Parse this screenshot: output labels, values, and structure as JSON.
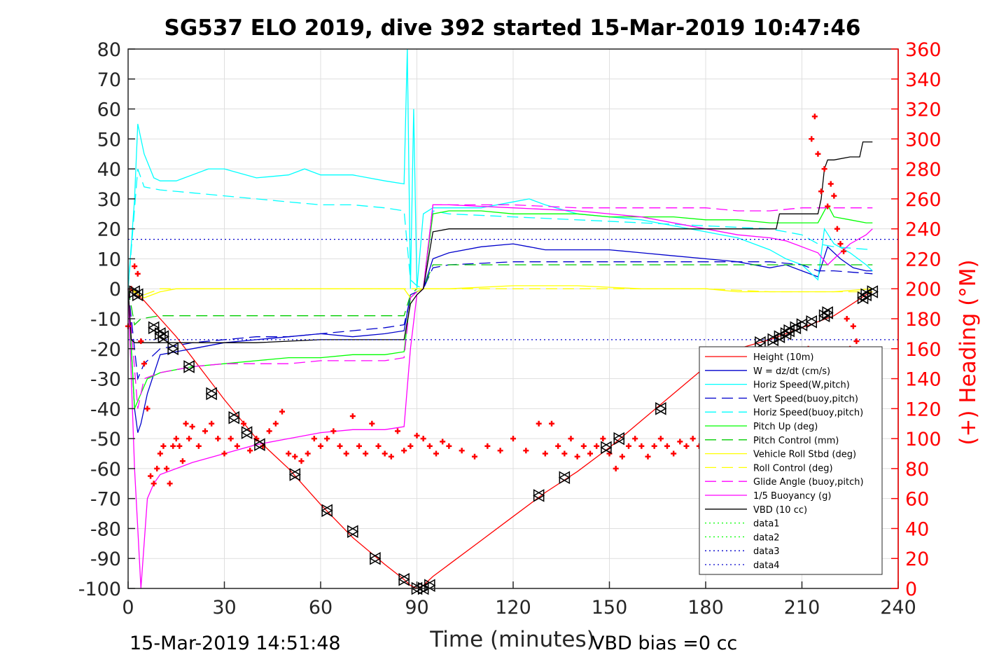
{
  "chart_data": {
    "type": "line",
    "title": "SG537 ELO 2019, dive 392 started 15-Mar-2019 10:47:46",
    "xlabel": "Time (minutes)",
    "ylabel_right": "(+) Heading (°M)",
    "xlim": [
      0,
      240
    ],
    "ylim": [
      -100,
      80
    ],
    "ylim_right": [
      0,
      360
    ],
    "x_ticks": [
      "0",
      "30",
      "60",
      "90",
      "120",
      "150",
      "180",
      "210",
      "240"
    ],
    "y_ticks": [
      "80",
      "70",
      "60",
      "50",
      "40",
      "30",
      "20",
      "10",
      "0",
      "-10",
      "-20",
      "-30",
      "-40",
      "-50",
      "-60",
      "-70",
      "-80",
      "-90",
      "-100"
    ],
    "y_ticks_right": [
      "360",
      "340",
      "320",
      "300",
      "280",
      "260",
      "240",
      "220",
      "200",
      "180",
      "160",
      "140",
      "120",
      "100",
      "80",
      "60",
      "40",
      "20",
      "0"
    ],
    "grid": true,
    "legend_position": "bottom-right",
    "footer_left": "15-Mar-2019 14:51:48",
    "footer_right": "VBD bias =0 cc",
    "series": [
      {
        "name": "Height (10m)",
        "color": "#ff0000",
        "style": "solid",
        "x": [
          0,
          2,
          5,
          10,
          15,
          20,
          30,
          40,
          50,
          60,
          70,
          80,
          86,
          88,
          90,
          92,
          95,
          100,
          110,
          120,
          130,
          140,
          150,
          160,
          170,
          180,
          190,
          200,
          210,
          220,
          230,
          232
        ],
        "y": [
          0,
          -1,
          -4,
          -10,
          -16,
          -23,
          -37,
          -50,
          -60,
          -72,
          -83,
          -92,
          -97,
          -99,
          -100,
          -99,
          -96,
          -92,
          -84,
          -76,
          -68,
          -61,
          -53,
          -44,
          -35,
          -26,
          -20,
          -17,
          -13,
          -9,
          -2,
          -1
        ]
      },
      {
        "name": "W = dz/dt (cm/s)",
        "color": "#0000cc",
        "style": "solid",
        "x": [
          0,
          1,
          2,
          3,
          4,
          6,
          10,
          20,
          30,
          40,
          50,
          60,
          70,
          80,
          86,
          88,
          90,
          92,
          95,
          100,
          110,
          120,
          125,
          130,
          140,
          150,
          160,
          170,
          180,
          190,
          200,
          205,
          210,
          215,
          218,
          222,
          226,
          230,
          232
        ],
        "y": [
          0,
          -20,
          -40,
          -48,
          -45,
          -35,
          -22,
          -20,
          -18,
          -17,
          -16,
          -15,
          -16,
          -15,
          -14,
          -2,
          -1,
          0,
          10,
          12,
          14,
          15,
          14,
          13,
          13,
          13,
          12,
          11,
          10,
          9,
          7,
          8,
          6,
          4,
          14,
          10,
          7,
          6,
          6
        ]
      },
      {
        "name": "Horiz Speed(W,pitch)",
        "color": "#00ffff",
        "style": "solid",
        "x": [
          0,
          2,
          3,
          5,
          8,
          10,
          15,
          20,
          25,
          30,
          40,
          50,
          55,
          60,
          70,
          80,
          86,
          87,
          88,
          89,
          90,
          92,
          95,
          100,
          110,
          120,
          125,
          130,
          140,
          150,
          160,
          170,
          180,
          190,
          200,
          205,
          210,
          213,
          215,
          217,
          220,
          225,
          230,
          232
        ],
        "y": [
          0,
          30,
          55,
          45,
          37,
          36,
          36,
          38,
          40,
          40,
          37,
          38,
          40,
          38,
          38,
          36,
          35,
          80,
          0,
          60,
          0,
          25,
          27,
          27,
          27,
          29,
          30,
          28,
          25,
          24,
          23,
          21,
          19,
          17,
          13,
          10,
          8,
          5,
          3,
          20,
          15,
          12,
          8,
          6
        ]
      },
      {
        "name": "Vert Speed(buoy,pitch)",
        "color": "#0000cc",
        "style": "dashed",
        "x": [
          0,
          3,
          5,
          10,
          20,
          30,
          40,
          50,
          60,
          70,
          80,
          86,
          88,
          90,
          92,
          95,
          100,
          120,
          140,
          160,
          180,
          200,
          210,
          215,
          220,
          232
        ],
        "y": [
          0,
          -30,
          -25,
          -20,
          -18,
          -17,
          -16,
          -16,
          -15,
          -14,
          -13,
          -12,
          -3,
          -1,
          0,
          7,
          8,
          9,
          9,
          9,
          9,
          9,
          8,
          6,
          6,
          5
        ]
      },
      {
        "name": "Horiz Speed(buoy,pitch)",
        "color": "#00ffff",
        "style": "dashed",
        "x": [
          0,
          3,
          5,
          10,
          20,
          30,
          40,
          50,
          60,
          70,
          80,
          86,
          88,
          90,
          92,
          95,
          100,
          120,
          140,
          160,
          180,
          200,
          210,
          215,
          220,
          232
        ],
        "y": [
          0,
          40,
          34,
          33,
          32,
          31,
          30,
          29,
          28,
          28,
          27,
          26,
          3,
          1,
          0,
          26,
          25,
          24,
          23,
          22,
          21,
          20,
          18,
          15,
          14,
          13
        ]
      },
      {
        "name": "Pitch Up (deg)",
        "color": "#00ff00",
        "style": "solid",
        "x": [
          0,
          2,
          4,
          6,
          10,
          20,
          30,
          40,
          50,
          60,
          70,
          80,
          86,
          88,
          90,
          92,
          95,
          100,
          110,
          120,
          130,
          140,
          150,
          160,
          170,
          180,
          190,
          200,
          210,
          215,
          218,
          220,
          225,
          230,
          232
        ],
        "y": [
          0,
          -40,
          -35,
          -30,
          -28,
          -26,
          -25,
          -24,
          -23,
          -23,
          -22,
          -22,
          -21,
          -3,
          -1,
          0,
          25,
          26,
          26,
          25,
          25,
          25,
          24,
          24,
          24,
          23,
          23,
          22,
          22,
          22,
          28,
          24,
          23,
          22,
          22
        ]
      },
      {
        "name": "Pitch Control (mm)",
        "color": "#00cc00",
        "style": "dashed",
        "x": [
          0,
          2,
          4,
          10,
          20,
          40,
          60,
          80,
          86,
          88,
          90,
          92,
          95,
          120,
          150,
          180,
          200,
          210,
          220,
          232
        ],
        "y": [
          0,
          -12,
          -10,
          -9,
          -9,
          -9,
          -9,
          -9,
          -9,
          -2,
          0,
          0,
          8,
          8,
          8,
          8,
          8,
          8,
          8,
          8
        ]
      },
      {
        "name": "Vehicle Roll Stbd (deg)",
        "color": "#ffff00",
        "style": "solid",
        "x": [
          0,
          5,
          10,
          15,
          20,
          30,
          40,
          50,
          60,
          70,
          80,
          86,
          88,
          90,
          92,
          95,
          100,
          120,
          140,
          160,
          180,
          190,
          200,
          210,
          220,
          232
        ],
        "y": [
          0,
          -3,
          -1,
          0,
          0,
          0,
          0,
          0,
          0,
          0,
          0,
          0,
          -3,
          -1,
          0,
          0,
          0,
          1,
          1,
          0,
          0,
          -1,
          -1,
          -1,
          -1,
          0
        ]
      },
      {
        "name": "Roll Control (deg)",
        "color": "#ffff00",
        "style": "dashed",
        "x": [
          0,
          5,
          10,
          20,
          40,
          60,
          80,
          88,
          90,
          95,
          120,
          150,
          180,
          200,
          210,
          220,
          232
        ],
        "y": [
          0,
          -2,
          0,
          0,
          0,
          0,
          0,
          0,
          0,
          0,
          0,
          0,
          0,
          -1,
          -1,
          -1,
          -1
        ]
      },
      {
        "name": "Glide Angle (buoy,pitch)",
        "color": "#ff00ff",
        "style": "dashed",
        "x": [
          0,
          3,
          5,
          10,
          20,
          30,
          40,
          50,
          60,
          70,
          80,
          86,
          88,
          90,
          92,
          95,
          100,
          120,
          140,
          160,
          180,
          190,
          200,
          210,
          220,
          232
        ],
        "y": [
          0,
          -40,
          -30,
          -28,
          -26,
          -25,
          -25,
          -25,
          -24,
          -24,
          -24,
          -23,
          -3,
          -1,
          0,
          28,
          28,
          28,
          27,
          27,
          27,
          26,
          26,
          27,
          27,
          27
        ]
      },
      {
        "name": "1/5 Buoyancy (g)",
        "color": "#ff00ff",
        "style": "solid",
        "x": [
          0,
          2,
          3,
          4,
          5,
          6,
          8,
          10,
          15,
          20,
          30,
          40,
          50,
          60,
          70,
          80,
          86,
          88,
          90,
          92,
          95,
          100,
          120,
          140,
          160,
          180,
          190,
          200,
          205,
          210,
          215,
          218,
          220,
          225,
          230,
          232
        ],
        "y": [
          0,
          -60,
          -80,
          -100,
          -85,
          -70,
          -65,
          -62,
          -60,
          -58,
          -55,
          -52,
          -50,
          -48,
          -47,
          -47,
          -46,
          -20,
          -2,
          0,
          28,
          28,
          27,
          26,
          24,
          20,
          18,
          17,
          16,
          14,
          12,
          8,
          10,
          15,
          18,
          20
        ]
      },
      {
        "name": "VBD (10 cc)",
        "color": "#000000",
        "style": "solid",
        "x": [
          0,
          1,
          2,
          10,
          20,
          40,
          60,
          80,
          86,
          88,
          90,
          92,
          95,
          100,
          120,
          150,
          180,
          190,
          200,
          202,
          203,
          210,
          215,
          216,
          217,
          218,
          220,
          225,
          228,
          229,
          230,
          232
        ],
        "y": [
          0,
          -17,
          -18,
          -18,
          -18,
          -18,
          -17,
          -17,
          -17,
          -5,
          -2,
          0,
          19,
          20,
          20,
          20,
          20,
          20,
          20,
          20,
          25,
          25,
          25,
          30,
          40,
          43,
          43,
          44,
          44,
          49,
          49,
          49
        ]
      },
      {
        "name": "data1",
        "color": "#00ff00",
        "style": "dotted",
        "x": [],
        "y": []
      },
      {
        "name": "data2",
        "color": "#00ff00",
        "style": "dotted",
        "x": [],
        "y": []
      },
      {
        "name": "data3",
        "color": "#0000cc",
        "style": "dotted",
        "x": [
          0,
          240
        ],
        "y": [
          -17,
          -17
        ]
      },
      {
        "name": "data4",
        "color": "#0000cc",
        "style": "dotted",
        "x": [
          0,
          240
        ],
        "y": [
          16.5,
          16.5
        ]
      }
    ],
    "heading": {
      "name": "(+) Heading (°M)",
      "color": "#ff0000",
      "axis": "right",
      "x": [
        0,
        1,
        2,
        3,
        4,
        5,
        6,
        7,
        8,
        9,
        10,
        11,
        12,
        13,
        14,
        15,
        16,
        17,
        18,
        19,
        20,
        22,
        24,
        26,
        28,
        30,
        32,
        34,
        36,
        38,
        40,
        42,
        44,
        46,
        48,
        50,
        52,
        54,
        56,
        58,
        60,
        62,
        64,
        66,
        68,
        70,
        72,
        74,
        76,
        78,
        80,
        82,
        84,
        86,
        88,
        90,
        92,
        94,
        96,
        98,
        100,
        104,
        108,
        112,
        116,
        120,
        124,
        128,
        130,
        132,
        134,
        136,
        138,
        140,
        142,
        144,
        146,
        148,
        150,
        152,
        154,
        156,
        158,
        160,
        162,
        164,
        166,
        168,
        170,
        172,
        174,
        176,
        178,
        180,
        182,
        184,
        186,
        188,
        190,
        192,
        194,
        196,
        198,
        200,
        202,
        204,
        206,
        208,
        210,
        212,
        213,
        214,
        215,
        216,
        217,
        218,
        219,
        220,
        221,
        222,
        223,
        224,
        225,
        226,
        227
      ],
      "y": [
        175,
        200,
        215,
        210,
        165,
        150,
        120,
        75,
        70,
        80,
        90,
        95,
        80,
        70,
        95,
        100,
        95,
        85,
        110,
        100,
        108,
        95,
        105,
        110,
        100,
        90,
        100,
        95,
        110,
        92,
        100,
        95,
        105,
        110,
        118,
        90,
        88,
        85,
        90,
        100,
        95,
        100,
        105,
        95,
        90,
        115,
        95,
        90,
        110,
        95,
        90,
        88,
        105,
        92,
        95,
        102,
        100,
        95,
        90,
        98,
        95,
        92,
        88,
        95,
        92,
        100,
        92,
        110,
        90,
        110,
        95,
        90,
        100,
        88,
        95,
        90,
        95,
        100,
        90,
        80,
        88,
        95,
        100,
        95,
        88,
        95,
        100,
        95,
        90,
        98,
        95,
        100,
        95,
        85,
        90,
        100,
        92,
        95,
        98,
        92,
        95,
        100,
        95,
        92,
        90,
        85,
        92,
        95,
        85,
        160,
        300,
        315,
        290,
        265,
        280,
        255,
        270,
        262,
        240,
        230,
        225,
        180,
        160,
        175,
        165
      ]
    },
    "markers": {
      "name": "dive markers",
      "color": "#000000",
      "x": [
        2,
        3,
        8,
        10,
        11,
        14,
        19,
        26,
        33,
        37,
        41,
        52,
        62,
        70,
        77,
        86,
        90,
        92,
        94,
        128,
        136,
        149,
        153,
        166,
        197,
        201,
        203,
        205,
        206,
        208,
        210,
        213,
        217,
        218,
        229,
        230,
        232
      ],
      "y": [
        -1,
        -2,
        -13,
        -15,
        -16,
        -20,
        -26,
        -35,
        -43,
        -48,
        -52,
        -62,
        -74,
        -81,
        -90,
        -97,
        -100,
        -100,
        -99,
        -69,
        -63,
        -53,
        -50,
        -40,
        -18,
        -17,
        -16,
        -15,
        -14,
        -13,
        -12,
        -11,
        -9,
        -8,
        -3,
        -2,
        -1
      ]
    }
  }
}
